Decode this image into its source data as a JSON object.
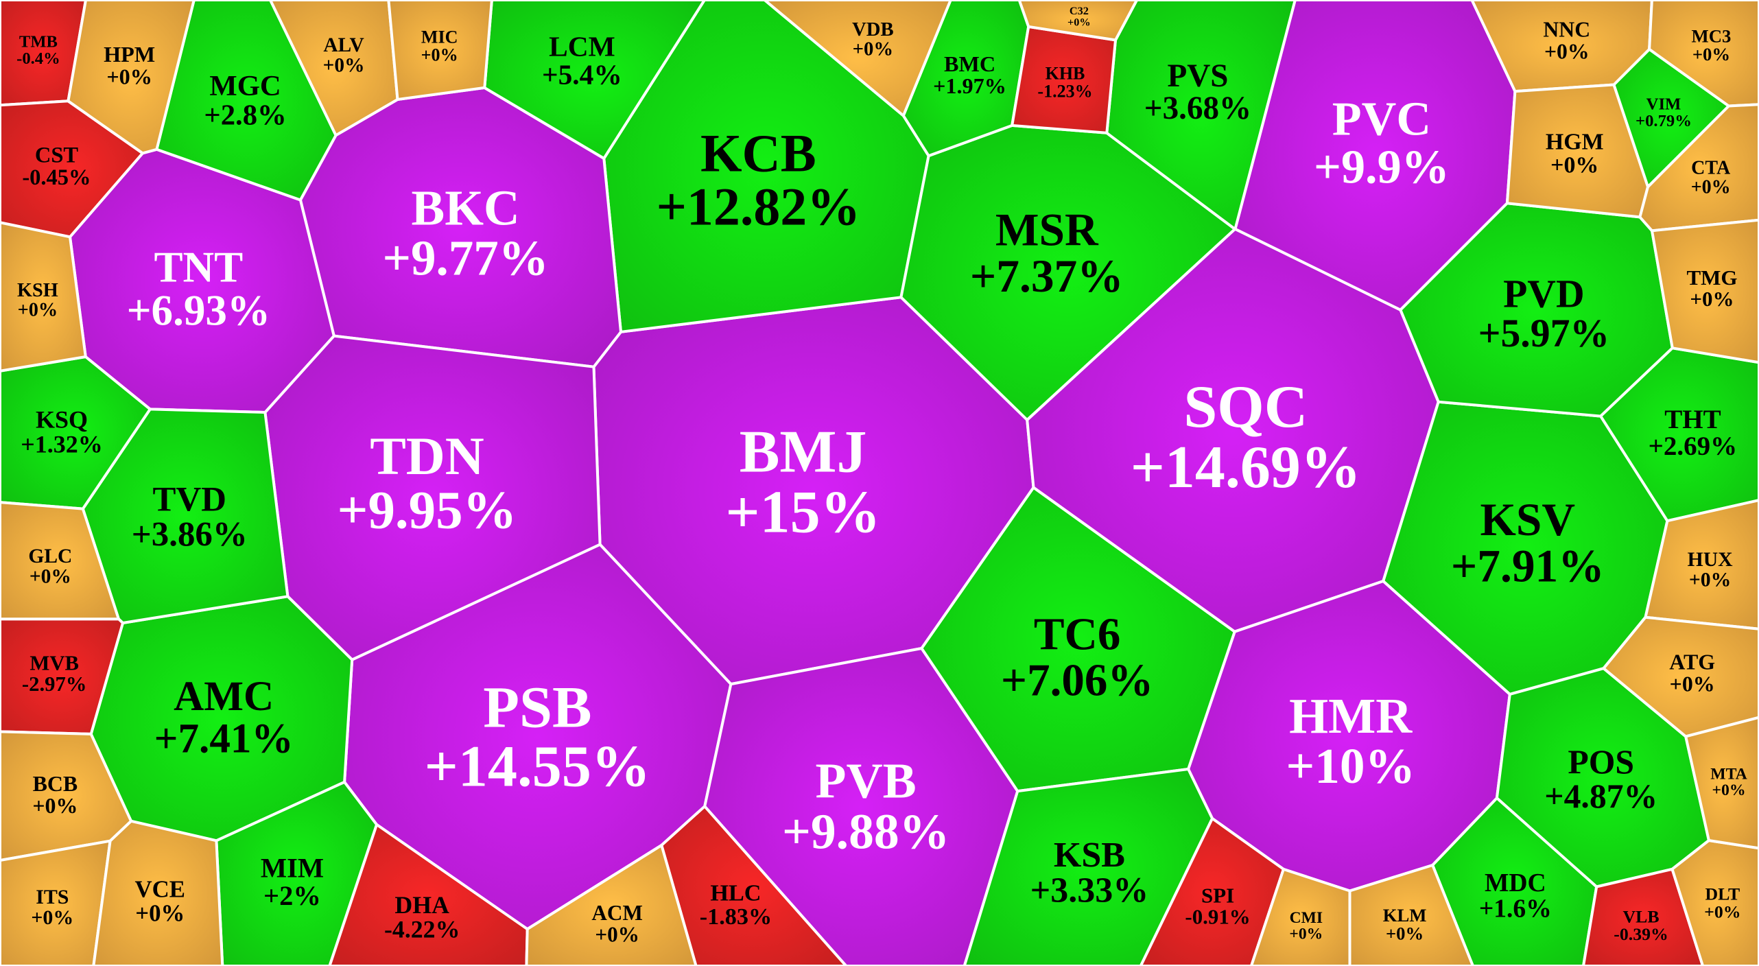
{
  "colors": {
    "ceiling": "#c51ee4",
    "up": "#12dd12",
    "flat": "#f5b042",
    "down": "#e52424",
    "border": "#ffffff",
    "text_light": "#ffffff",
    "text_dark": "#000000"
  },
  "chart_data": {
    "type": "voronoi-treemap",
    "cells": [
      {
        "ticker": "BMJ",
        "change_label": "+15%",
        "value": 15,
        "status": "ceiling",
        "importance": 5.0
      },
      {
        "ticker": "SQC",
        "change_label": "+14.69%",
        "value": 14.69,
        "status": "ceiling",
        "importance": 4.2
      },
      {
        "ticker": "PSB",
        "change_label": "+14.55%",
        "value": 14.55,
        "status": "ceiling",
        "importance": 4.4
      },
      {
        "ticker": "KCB",
        "change_label": "+12.82%",
        "value": 12.82,
        "status": "up",
        "importance": 3.6
      },
      {
        "ticker": "BKC",
        "change_label": "+9.77%",
        "value": 9.77,
        "status": "ceiling",
        "importance": 3.2
      },
      {
        "ticker": "TDN",
        "change_label": "+9.95%",
        "value": 9.95,
        "status": "ceiling",
        "importance": 3.4
      },
      {
        "ticker": "TNT",
        "change_label": "+6.93%",
        "value": 6.93,
        "status": "ceiling",
        "importance": 2.8
      },
      {
        "ticker": "PVC",
        "change_label": "+9.9%",
        "value": 9.9,
        "status": "ceiling",
        "importance": 3.0
      },
      {
        "ticker": "PVB",
        "change_label": "+9.88%",
        "value": 9.88,
        "status": "ceiling",
        "importance": 3.1
      },
      {
        "ticker": "HMR",
        "change_label": "+10%",
        "value": 10,
        "status": "ceiling",
        "importance": 3.1
      },
      {
        "ticker": "KSV",
        "change_label": "+7.91%",
        "value": 7.91,
        "status": "up",
        "importance": 2.6
      },
      {
        "ticker": "MSR",
        "change_label": "+7.37%",
        "value": 7.37,
        "status": "up",
        "importance": 2.4
      },
      {
        "ticker": "TC6",
        "change_label": "+7.06%",
        "value": 7.06,
        "status": "up",
        "importance": 2.1
      },
      {
        "ticker": "AMC",
        "change_label": "+7.41%",
        "value": 7.41,
        "status": "up",
        "importance": 2.3
      },
      {
        "ticker": "PVD",
        "change_label": "+5.97%",
        "value": 5.97,
        "status": "up",
        "importance": 1.9
      },
      {
        "ticker": "POS",
        "change_label": "+4.87%",
        "value": 4.87,
        "status": "up",
        "importance": 1.6
      },
      {
        "ticker": "TVD",
        "change_label": "+3.86%",
        "value": 3.86,
        "status": "up",
        "importance": 1.3
      },
      {
        "ticker": "MGC",
        "change_label": "+2.8%",
        "value": 2.8,
        "status": "up",
        "importance": 1.15
      },
      {
        "ticker": "PVS",
        "change_label": "+3.68%",
        "value": 3.68,
        "status": "up",
        "importance": 1.15
      },
      {
        "ticker": "KSB",
        "change_label": "+3.33%",
        "value": 3.33,
        "status": "up",
        "importance": 1.05
      },
      {
        "ticker": "LCM",
        "change_label": "+5.4%",
        "value": 5.4,
        "status": "up",
        "importance": 0.85
      },
      {
        "ticker": "BMC",
        "change_label": "+1.97%",
        "value": 1.97,
        "status": "up",
        "importance": 0.8
      },
      {
        "ticker": "MIM",
        "change_label": "+2%",
        "value": 2,
        "status": "up",
        "importance": 0.85
      },
      {
        "ticker": "MDC",
        "change_label": "+1.6%",
        "value": 1.6,
        "status": "up",
        "importance": 0.8
      },
      {
        "ticker": "THT",
        "change_label": "+2.69%",
        "value": 2.69,
        "status": "up",
        "importance": 0.85
      },
      {
        "ticker": "KSQ",
        "change_label": "+1.32%",
        "value": 1.32,
        "status": "up",
        "importance": 0.75
      },
      {
        "ticker": "VIM",
        "change_label": "+0.79%",
        "value": 0.79,
        "status": "up",
        "importance": 0.55
      },
      {
        "ticker": "TMB",
        "change_label": "-0.4%",
        "value": -0.4,
        "status": "down",
        "importance": 0.65
      },
      {
        "ticker": "CST",
        "change_label": "-0.45%",
        "value": -0.45,
        "status": "down",
        "importance": 0.7
      },
      {
        "ticker": "MVB",
        "change_label": "-2.97%",
        "value": -2.97,
        "status": "down",
        "importance": 0.6
      },
      {
        "ticker": "DHA",
        "change_label": "-4.22%",
        "value": -4.22,
        "status": "down",
        "importance": 0.5
      },
      {
        "ticker": "HLC",
        "change_label": "-1.83%",
        "value": -1.83,
        "status": "down",
        "importance": 0.5
      },
      {
        "ticker": "SPI",
        "change_label": "-0.91%",
        "value": -0.91,
        "status": "down",
        "importance": 0.5
      },
      {
        "ticker": "VLB",
        "change_label": "-0.39%",
        "value": -0.39,
        "status": "down",
        "importance": 0.55
      },
      {
        "ticker": "KHB",
        "change_label": "-1.23%",
        "value": -1.23,
        "status": "down",
        "importance": 0.3
      },
      {
        "ticker": "HPM",
        "change_label": "+0%",
        "value": 0,
        "status": "flat",
        "importance": 0.7
      },
      {
        "ticker": "ALV",
        "change_label": "+0%",
        "value": 0,
        "status": "flat",
        "importance": 0.6
      },
      {
        "ticker": "MIC",
        "change_label": "+0%",
        "value": 0,
        "status": "flat",
        "importance": 0.55
      },
      {
        "ticker": "KSH",
        "change_label": "+0%",
        "value": 0,
        "status": "flat",
        "importance": 0.5
      },
      {
        "ticker": "GLC",
        "change_label": "+0%",
        "value": 0,
        "status": "flat",
        "importance": 0.55
      },
      {
        "ticker": "BCB",
        "change_label": "+0%",
        "value": 0,
        "status": "flat",
        "importance": 0.6
      },
      {
        "ticker": "ITS",
        "change_label": "+0%",
        "value": 0,
        "status": "flat",
        "importance": 0.7
      },
      {
        "ticker": "VCE",
        "change_label": "+0%",
        "value": 0,
        "status": "flat",
        "importance": 0.65
      },
      {
        "ticker": "NNC",
        "change_label": "+0%",
        "value": 0,
        "status": "flat",
        "importance": 0.65
      },
      {
        "ticker": "MC3",
        "change_label": "+0%",
        "value": 0,
        "status": "flat",
        "importance": 0.65
      },
      {
        "ticker": "HGM",
        "change_label": "+0%",
        "value": 0,
        "status": "flat",
        "importance": 0.5
      },
      {
        "ticker": "CTA",
        "change_label": "+0%",
        "value": 0,
        "status": "flat",
        "importance": 0.6
      },
      {
        "ticker": "TMG",
        "change_label": "+0%",
        "value": 0,
        "status": "flat",
        "importance": 0.55
      },
      {
        "ticker": "HUX",
        "change_label": "+0%",
        "value": 0,
        "status": "flat",
        "importance": 0.55
      },
      {
        "ticker": "ATG",
        "change_label": "+0%",
        "value": 0,
        "status": "flat",
        "importance": 0.55
      },
      {
        "ticker": "DLT",
        "change_label": "+0%",
        "value": 0,
        "status": "flat",
        "importance": 0.6
      },
      {
        "ticker": "VDB",
        "change_label": "+0%",
        "value": 0,
        "status": "flat",
        "importance": 0.25
      },
      {
        "ticker": "C32",
        "change_label": "+0%",
        "value": 0,
        "status": "flat",
        "importance": 0.3
      },
      {
        "ticker": "ACM",
        "change_label": "+0%",
        "value": 0,
        "status": "flat",
        "importance": 0.3
      },
      {
        "ticker": "CMI",
        "change_label": "+0%",
        "value": 0,
        "status": "flat",
        "importance": 0.3
      },
      {
        "ticker": "KLM",
        "change_label": "+0%",
        "value": 0,
        "status": "flat",
        "importance": 0.3
      },
      {
        "ticker": "MTA",
        "change_label": "+0%",
        "value": 0,
        "status": "flat",
        "importance": 0.3
      }
    ]
  }
}
